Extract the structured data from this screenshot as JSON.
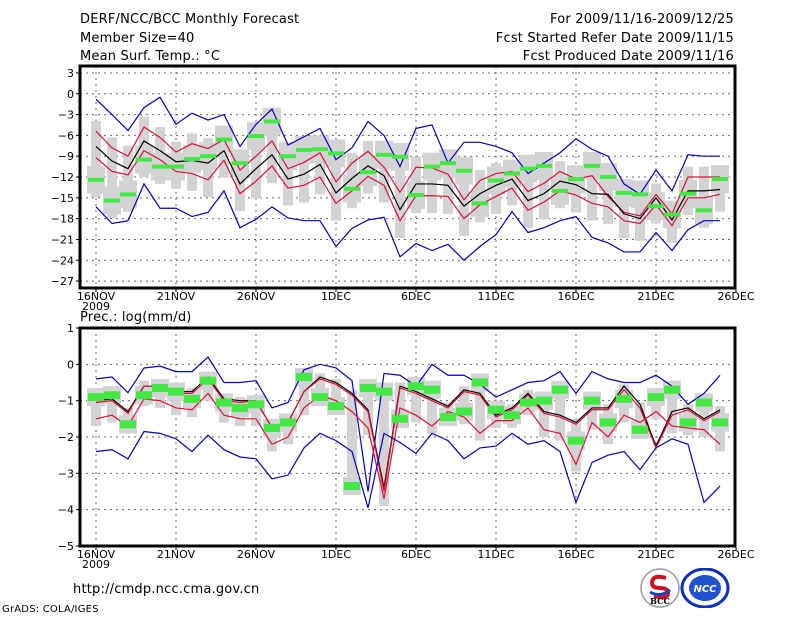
{
  "header": {
    "title": "DERF/NCC/BCC Monthly Forecast",
    "member_size": "Member Size=40",
    "variable_top": "Mean Surf. Temp.: °C",
    "period": "For 2009/11/16-2009/12/25",
    "start_date": "Fcst Started Refer Date 2009/11/15",
    "produced_date": "Fcst Produced Date 2009/11/16"
  },
  "footer": {
    "url": "http://cmdp.ncc.cma.gov.cn",
    "grads": "GrADS: COLA/IGES",
    "logos": [
      "BCC",
      "NCC"
    ]
  },
  "colors": {
    "extreme": "#0000cc",
    "spread": "#dd1133",
    "mean": "#000000",
    "observed": "#44e844",
    "box": "#d3d3d6",
    "grid": "#666666"
  },
  "chart_data": [
    {
      "type": "line",
      "title": "Mean Surf. Temp.: °C",
      "xlabel": "",
      "ylabel": "",
      "ylim": [
        -28,
        4
      ],
      "yticks": [
        3,
        0,
        -3,
        -6,
        -9,
        -12,
        -15,
        -18,
        -21,
        -24,
        -27
      ],
      "xtick_labels": [
        "16NOV",
        "21NOV",
        "26NOV",
        "1DEC",
        "6DEC",
        "11DEC",
        "16DEC",
        "21DEC",
        "26DEC"
      ],
      "xtick_year": "2009",
      "grid": true,
      "n_days": 40,
      "series": [
        {
          "name": "max",
          "color": "extreme",
          "values": [
            -0.8,
            -3,
            -5.3,
            -2,
            -0.5,
            -4.4,
            -2.8,
            -3.8,
            -3,
            -7.6,
            -4.4,
            -2.2,
            -7.4,
            -6.2,
            -5,
            -9.5,
            -7.8,
            -4,
            -6,
            -10.5,
            -5,
            -4.5,
            -10,
            -7,
            -7,
            -7.6,
            -8.5,
            -11.5,
            -10,
            -8.5,
            -6.5,
            -8,
            -9,
            -13,
            -14.5,
            -11,
            -14,
            -8.8,
            -9,
            -9
          ]
        },
        {
          "name": "upper",
          "color": "spread",
          "values": [
            -5.4,
            -7.8,
            -9,
            -4.8,
            -6.3,
            -8.4,
            -7.2,
            -7.9,
            -6.6,
            -11,
            -9,
            -6.8,
            -10.8,
            -9.9,
            -8.5,
            -12.7,
            -10,
            -8.3,
            -10.6,
            -14.2,
            -10.6,
            -10.7,
            -11.6,
            -15.3,
            -12.5,
            -11.5,
            -11.2,
            -14.1,
            -12.9,
            -11.2,
            -12.3,
            -11.8,
            -14.8,
            -17.1,
            -17.6,
            -14.5,
            -17.3,
            -12,
            -12,
            -12
          ]
        },
        {
          "name": "mean",
          "color": "mean",
          "values": [
            -7.6,
            -9.7,
            -10.8,
            -6.8,
            -8.2,
            -9.8,
            -9.6,
            -10,
            -8.2,
            -13,
            -10.8,
            -8.8,
            -12.3,
            -11.6,
            -10.2,
            -14.3,
            -12.2,
            -10.4,
            -11.8,
            -16.7,
            -13,
            -13,
            -13.2,
            -16.2,
            -14.4,
            -13.2,
            -12.3,
            -15.4,
            -14.4,
            -12.6,
            -13.1,
            -14.4,
            -14.5,
            -17.3,
            -18,
            -15,
            -18.2,
            -14,
            -14,
            -13.8
          ]
        },
        {
          "name": "lower",
          "color": "spread",
          "values": [
            -9.2,
            -11.2,
            -11.7,
            -8.2,
            -9.5,
            -11.2,
            -11.5,
            -12.4,
            -9.6,
            -14.4,
            -12.6,
            -10.4,
            -13.6,
            -13.2,
            -12,
            -15.8,
            -14,
            -11.9,
            -13.2,
            -18.3,
            -14.7,
            -14.7,
            -14.8,
            -18,
            -16,
            -14.8,
            -13.6,
            -16.8,
            -15.6,
            -14,
            -14.6,
            -15.8,
            -16.3,
            -18.3,
            -18.7,
            -16,
            -19,
            -15,
            -15,
            -14.5
          ]
        },
        {
          "name": "min",
          "color": "extreme",
          "values": [
            -16.3,
            -18.7,
            -18.3,
            -13,
            -16.5,
            -16.5,
            -17.7,
            -17.1,
            -14,
            -19.3,
            -18.1,
            -16.3,
            -17.9,
            -18.3,
            -18.3,
            -22,
            -19.4,
            -18.2,
            -17.8,
            -23.5,
            -21.6,
            -22.6,
            -21.7,
            -24,
            -22,
            -20.3,
            -17,
            -20,
            -19.3,
            -18.3,
            -17.7,
            -20.7,
            -21.5,
            -22.8,
            -22.8,
            -20,
            -22.6,
            -19.6,
            -18.3,
            -18.3
          ]
        },
        {
          "name": "observed",
          "color": "observed",
          "values": [
            -12.4,
            -15.4,
            -14.5,
            -9.5,
            -10.5,
            -10.5,
            -9.4,
            -9,
            -6.6,
            -10,
            -6.1,
            -4,
            -9,
            -8.1,
            -8,
            -8.6,
            -13.7,
            -11.3,
            -8.8,
            -9.1,
            -14.6,
            -10.5,
            -10,
            -11.1,
            -15.8,
            -12.5,
            -11.5,
            -10.8,
            -10.4,
            -14,
            -12.3,
            -10.4,
            -12,
            -14.3,
            -14.5,
            -16.2,
            -17.4,
            -14.4,
            -16.8,
            -12.3
          ]
        }
      ],
      "boxes_note": "grey boxes show ensemble spread range per day"
    },
    {
      "type": "line",
      "title": "Prec.: log(mm/d)",
      "xlabel": "",
      "ylabel": "",
      "ylim": [
        -5,
        1
      ],
      "yticks": [
        1,
        0,
        -1,
        -2,
        -3,
        -4,
        -5
      ],
      "xtick_labels": [
        "16NOV",
        "21NOV",
        "26NOV",
        "1DEC",
        "6DEC",
        "11DEC",
        "16DEC",
        "21DEC",
        "26DEC"
      ],
      "xtick_year": "2009",
      "grid": true,
      "n_days": 40,
      "series": [
        {
          "name": "max",
          "color": "extreme",
          "values": [
            -0.4,
            -0.35,
            -0.78,
            -0.1,
            -0.05,
            -0.2,
            -0.2,
            0.2,
            -0.5,
            -0.5,
            -0.45,
            -1.2,
            -1.05,
            -0.15,
            0,
            -0.1,
            -0.45,
            -3.5,
            -0.25,
            -0.3,
            -0.6,
            0,
            -0.3,
            -0.3,
            -0.55,
            -0.9,
            -0.7,
            -0.5,
            -0.45,
            -0.2,
            -0.8,
            -0.2,
            -0.4,
            -0.5,
            -0.5,
            -0.3,
            -0.6,
            -1.1,
            -0.8,
            -0.3
          ]
        },
        {
          "name": "mean",
          "color": "mean",
          "values": [
            -1,
            -0.95,
            -1.3,
            -0.6,
            -0.6,
            -0.75,
            -0.75,
            -0.35,
            -0.95,
            -1,
            -1,
            -1.75,
            -1.6,
            -0.75,
            -0.35,
            -0.5,
            -0.8,
            -1.25,
            -3.4,
            -0.6,
            -0.75,
            -0.95,
            -1.15,
            -0.7,
            -0.8,
            -1.4,
            -1.2,
            -0.8,
            -1.3,
            -1.4,
            -1.6,
            -1.2,
            -1.2,
            -0.6,
            -1.1,
            -2.25,
            -1.3,
            -1.2,
            -1.5,
            -1.25
          ]
        },
        {
          "name": "upper",
          "color": "spread",
          "values": [
            -1.05,
            -1,
            -1.35,
            -0.6,
            -0.6,
            -0.8,
            -0.8,
            -0.4,
            -1,
            -1.05,
            -1,
            -1.75,
            -1.6,
            -0.75,
            -0.4,
            -0.55,
            -0.85,
            -1.3,
            -3.5,
            -0.65,
            -0.8,
            -1,
            -1.2,
            -0.75,
            -0.85,
            -1.45,
            -1.25,
            -0.85,
            -1.35,
            -1.45,
            -1.65,
            -1.25,
            -1.25,
            -0.7,
            -1.2,
            -2.3,
            -1.4,
            -1.25,
            -1.55,
            -1.3
          ]
        },
        {
          "name": "lower",
          "color": "spread",
          "values": [
            -1.5,
            -1.4,
            -1.7,
            -0.95,
            -1,
            -1.2,
            -1.25,
            -0.8,
            -1.4,
            -1.5,
            -1.5,
            -2.2,
            -2,
            -1.2,
            -0.85,
            -1,
            -1.3,
            -1.75,
            -3.7,
            -1.2,
            -1.4,
            -1.7,
            -1.3,
            -1.45,
            -1.9,
            -1.55,
            -1.55,
            -1.2,
            -1.8,
            -1.9,
            -2.75,
            -1.6,
            -2,
            -1.4,
            -1.6,
            -1.3,
            -1.7,
            -1.75,
            -1.8,
            -2.2
          ]
        },
        {
          "name": "min",
          "color": "extreme",
          "values": [
            -2.4,
            -2.35,
            -2.6,
            -1.85,
            -1.9,
            -2.05,
            -2.4,
            -1.95,
            -2.35,
            -2.55,
            -2.6,
            -3.15,
            -3.05,
            -2.3,
            -1.9,
            -2.1,
            -2.4,
            -3.95,
            -1.9,
            -2.15,
            -2.45,
            -1.9,
            -2.1,
            -2.6,
            -2.3,
            -2.25,
            -1.9,
            -2.2,
            -2.1,
            -2.4,
            -3.8,
            -2.7,
            -2.5,
            -2.4,
            -2.9,
            -2.3,
            -2.05,
            -2.2,
            -3.8,
            -3.35
          ]
        },
        {
          "name": "observed",
          "color": "observed",
          "values": [
            -0.9,
            -0.85,
            -1.65,
            -0.85,
            -0.65,
            -0.75,
            -0.95,
            -0.45,
            -1.05,
            -1.2,
            -1.1,
            -1.75,
            -1.6,
            -0.35,
            -0.9,
            -1.15,
            -3.35,
            -0.65,
            -0.75,
            -1.5,
            -0.6,
            -0.7,
            -1.45,
            -1.3,
            -0.5,
            -1.25,
            -1.4,
            -1.05,
            -1,
            -0.7,
            -2.1,
            -1,
            -1.6,
            -0.95,
            -1.8,
            -0.9,
            -0.7,
            -1.6,
            -1.05,
            -1.6
          ]
        }
      ]
    }
  ]
}
